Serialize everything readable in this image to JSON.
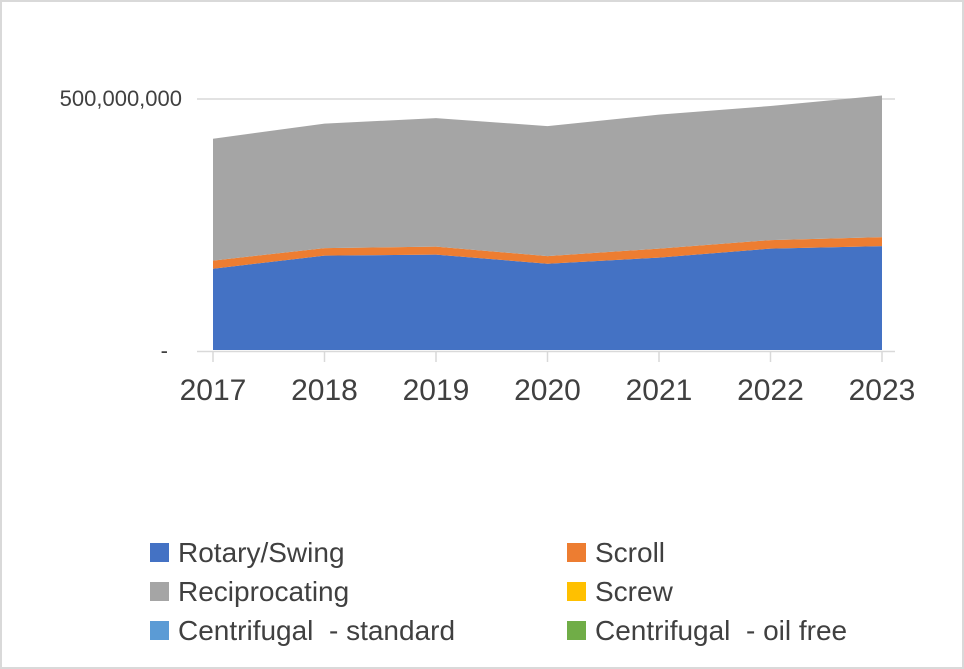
{
  "frame": {
    "background_color": "#FFFFFF",
    "border_color": "#D9D9D9"
  },
  "axes": {
    "y_max_label": "500,000,000",
    "y_zero_label": "-",
    "x_labels": [
      "2017",
      "2018",
      "2019",
      "2020",
      "2021",
      "2022",
      "2023"
    ],
    "axis_color": "#D9D9D9",
    "text_color": "#404040"
  },
  "legend": {
    "items": [
      {
        "label": "Rotary/Swing",
        "color": "#4472C4"
      },
      {
        "label": "Scroll",
        "color": "#ED7D31"
      },
      {
        "label": "Reciprocating",
        "color": "#A5A5A5"
      },
      {
        "label": "Screw",
        "color": "#FFC000"
      },
      {
        "label": "Centrifugal  - standard",
        "color": "#5B9BD5"
      },
      {
        "label": "Centrifugal  - oil free",
        "color": "#70AD47"
      }
    ]
  },
  "chart_data": {
    "type": "area",
    "stacked": true,
    "title": "",
    "xlabel": "",
    "ylabel": "",
    "x": [
      2017,
      2018,
      2019,
      2020,
      2021,
      2022,
      2023
    ],
    "series": [
      {
        "name": "Rotary/Swing",
        "color": "#4472C4",
        "values": [
          162000000,
          188000000,
          190000000,
          172000000,
          184000000,
          202000000,
          207000000
        ]
      },
      {
        "name": "Scroll",
        "color": "#ED7D31",
        "values": [
          16000000,
          15000000,
          16000000,
          15000000,
          18000000,
          17000000,
          18000000
        ]
      },
      {
        "name": "Reciprocating",
        "color": "#A5A5A5",
        "values": [
          243000000,
          248000000,
          256000000,
          259000000,
          267000000,
          267000000,
          282000000
        ]
      },
      {
        "name": "Screw",
        "color": "#FFC000",
        "values": [
          0,
          0,
          0,
          0,
          0,
          0,
          0
        ]
      },
      {
        "name": "Centrifugal  - standard",
        "color": "#5B9BD5",
        "values": [
          0,
          0,
          0,
          0,
          0,
          0,
          0
        ]
      },
      {
        "name": "Centrifugal  - oil free",
        "color": "#70AD47",
        "values": [
          0,
          0,
          0,
          0,
          0,
          0,
          0
        ]
      }
    ],
    "stacked_totals": [
      421000000,
      451000000,
      462000000,
      446000000,
      469000000,
      486000000,
      507000000
    ],
    "ylim": [
      0,
      500000000
    ],
    "y_tick_labels": [
      "-",
      "500,000,000"
    ],
    "grid": "single horizontal gridline at 500,000,000",
    "legend_position": "bottom, two columns"
  }
}
